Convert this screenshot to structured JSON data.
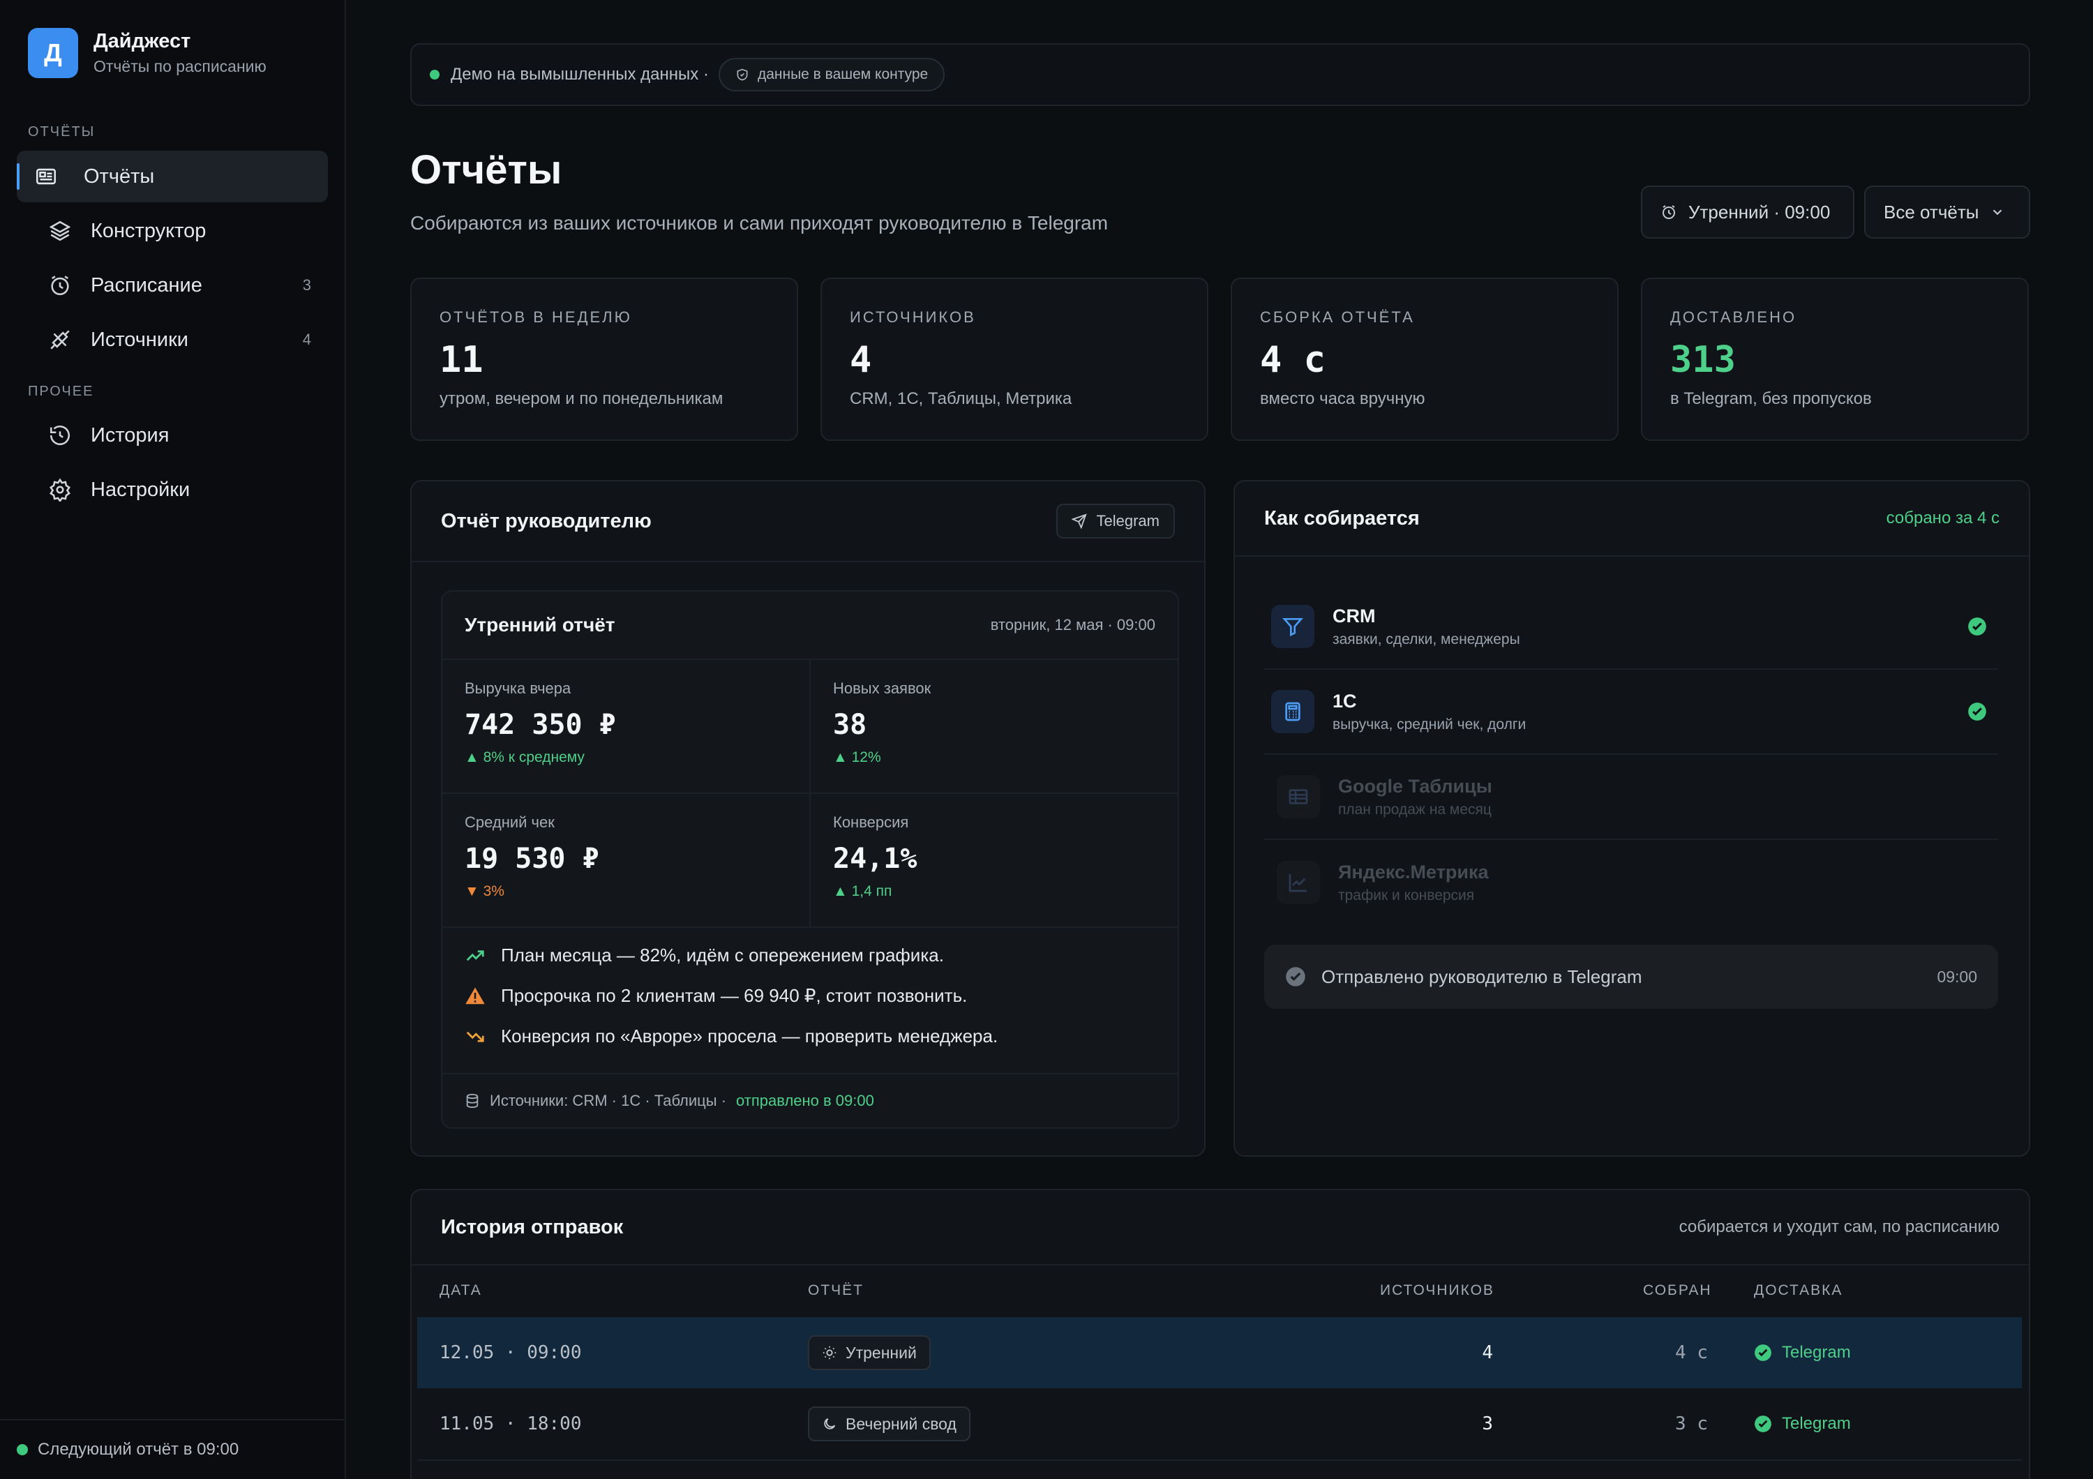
{
  "brand": {
    "logo_letter": "Д",
    "title": "Дайджест",
    "subtitle": "Отчёты по расписанию"
  },
  "sidebar": {
    "section_reports": "ОТЧЁТЫ",
    "section_other": "ПРОЧЕЕ",
    "items": [
      {
        "label": "Отчёты",
        "icon": "newspaper-icon",
        "active": true
      },
      {
        "label": "Конструктор",
        "icon": "layers-icon"
      },
      {
        "label": "Расписание",
        "icon": "alarm-clock-icon",
        "count": "3"
      },
      {
        "label": "Источники",
        "icon": "plug-icon",
        "count": "4"
      },
      {
        "label": "История",
        "icon": "history-icon"
      },
      {
        "label": "Настройки",
        "icon": "gear-icon"
      }
    ],
    "footer": "Следующий отчёт в 09:00"
  },
  "banner": {
    "text": "Демо на вымышленных данных ·",
    "pill": "данные в вашем контуре"
  },
  "header": {
    "title": "Отчёты",
    "subtitle": "Собираются из ваших источников и сами приходят руководителю в Telegram",
    "schedule_button": "Утренний · 09:00",
    "filter_button": "Все отчёты"
  },
  "stats": [
    {
      "label": "ОТЧЁТОВ В НЕДЕЛЮ",
      "value": "11",
      "note": "утром, вечером и по понедельникам"
    },
    {
      "label": "ИСТОЧНИКОВ",
      "value": "4",
      "note": "CRM, 1С, Таблицы, Метрика"
    },
    {
      "label": "СБОРКА ОТЧЁТА",
      "value": "4 с",
      "note": "вместо часа вручную"
    },
    {
      "label": "ДОСТАВЛЕНО",
      "value": "313",
      "note": "в Telegram, без пропусков"
    }
  ],
  "report_card": {
    "title": "Отчёт руководителю",
    "channel": "Telegram",
    "report": {
      "title": "Утренний отчёт",
      "date": "вторник, 12 мая · 09:00",
      "metrics": [
        {
          "label": "Выручка вчера",
          "value": "742 350 ₽",
          "delta": "▲ 8% к среднему",
          "trend": "up"
        },
        {
          "label": "Новых заявок",
          "value": "38",
          "delta": "▲ 12%",
          "trend": "up"
        },
        {
          "label": "Средний чек",
          "value": "19 530 ₽",
          "delta": "▼ 3%",
          "trend": "down"
        },
        {
          "label": "Конверсия",
          "value": "24,1%",
          "delta": "▲ 1,4 пп",
          "trend": "up"
        }
      ],
      "insights": [
        {
          "icon": "trend-up-icon",
          "text": "План месяца — 82%, идём с опережением графика."
        },
        {
          "icon": "warning-icon",
          "text": "Просрочка по 2 клиентам — 69 940 ₽, стоит позвонить."
        },
        {
          "icon": "trend-down-icon",
          "text": "Конверсия по «Авроре» просела — проверить менеджера."
        }
      ],
      "footer_sources": "Источники: CRM · 1С · Таблицы ·",
      "footer_sent": "отправлено в 09:00"
    }
  },
  "pipeline": {
    "title": "Как собирается",
    "status": "собрано за 4 с",
    "sources": [
      {
        "name": "CRM",
        "desc": "заявки, сделки, менеджеры",
        "icon": "funnel-icon",
        "done": true
      },
      {
        "name": "1С",
        "desc": "выручка, средний чек, долги",
        "icon": "calculator-icon",
        "done": true
      },
      {
        "name": "Google Таблицы",
        "desc": "план продаж на месяц",
        "icon": "table-icon",
        "done": false
      },
      {
        "name": "Яндекс.Метрика",
        "desc": "трафик и конверсия",
        "icon": "line-chart-icon",
        "done": false
      }
    ],
    "sent_text": "Отправлено руководителю в Telegram",
    "sent_time": "09:00"
  },
  "history": {
    "title": "История отправок",
    "subtitle": "собирается и уходит сам, по расписанию",
    "columns": [
      "ДАТА",
      "ОТЧЁТ",
      "ИСТОЧНИКОВ",
      "СОБРАН",
      "ДОСТАВКА"
    ],
    "rows": [
      {
        "date": "12.05 · 09:00",
        "report": "Утренний",
        "icon": "sun-icon",
        "sources": "4",
        "built": "4 с",
        "delivery": "Telegram",
        "highlight": true
      },
      {
        "date": "11.05 · 18:00",
        "report": "Вечерний свод",
        "icon": "moon-icon",
        "sources": "3",
        "built": "3 с",
        "delivery": "Telegram",
        "highlight": false
      }
    ]
  },
  "colors": {
    "accent": "#3b8ef0",
    "success": "#4fd08a",
    "warning": "#f0893a",
    "background": "#0c0f12"
  }
}
